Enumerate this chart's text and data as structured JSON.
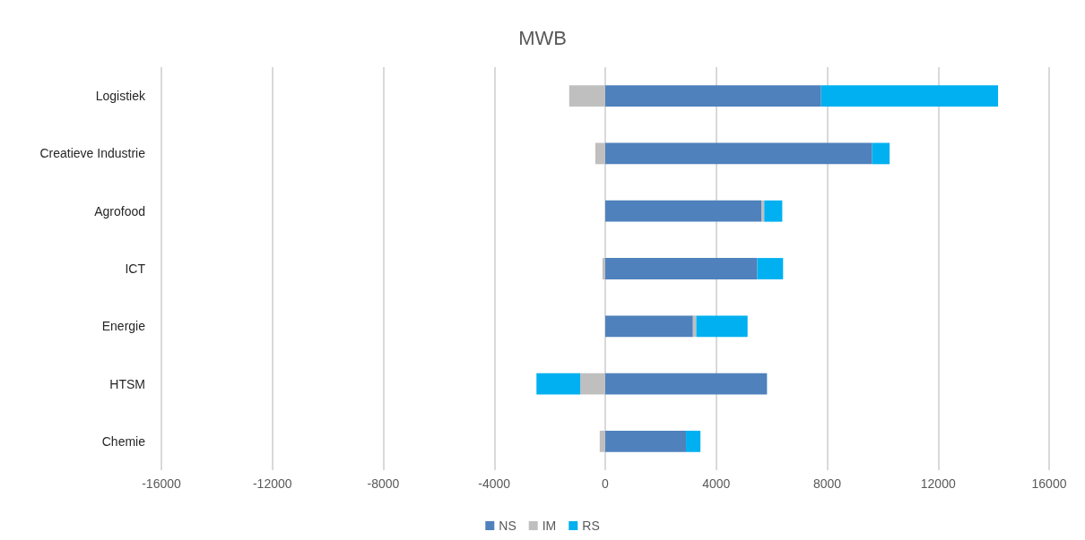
{
  "chart_data": {
    "type": "bar",
    "title": "MWB",
    "orientation": "horizontal",
    "stacked": true,
    "categories": [
      "Logistiek",
      "Creatieve Industrie",
      "Agrofood",
      "ICT",
      "Energie",
      "HTSM",
      "Chemie"
    ],
    "series": [
      {
        "name": "NS",
        "color": "#4f81bd",
        "values": [
          7780,
          9620,
          5640,
          5480,
          3160,
          5830,
          2910
        ]
      },
      {
        "name": "IM",
        "color": "#bfbfbf",
        "values": [
          -1300,
          -360,
          90,
          -100,
          120,
          -900,
          -200
        ]
      },
      {
        "name": "RS",
        "color": "#00b0f0",
        "values": [
          6380,
          630,
          650,
          930,
          1850,
          -1580,
          520
        ]
      }
    ],
    "xlim": [
      -16000,
      16000
    ],
    "xticks": [
      -16000,
      -12000,
      -8000,
      -4000,
      0,
      4000,
      8000,
      12000,
      16000
    ],
    "grid": "x",
    "legend": "bottom"
  }
}
